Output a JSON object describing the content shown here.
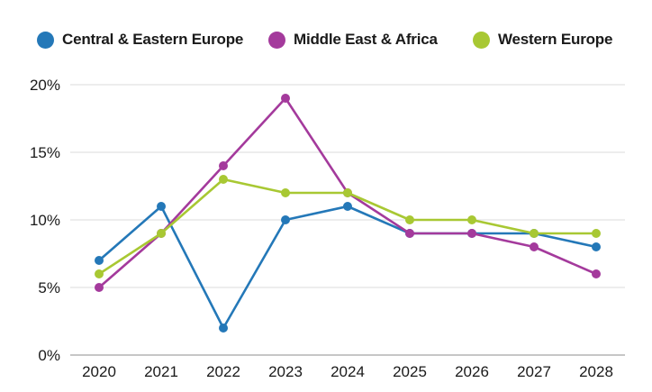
{
  "legend": {
    "items": [
      {
        "label": "Central & Eastern Europe",
        "color": "#2478b8"
      },
      {
        "label": "Middle East & Africa",
        "color": "#a43a9c"
      },
      {
        "label": "Western Europe",
        "color": "#a8c833"
      }
    ]
  },
  "chart_data": {
    "type": "line",
    "title": "",
    "categories": [
      "2020",
      "2021",
      "2022",
      "2023",
      "2024",
      "2025",
      "2026",
      "2027",
      "2028"
    ],
    "series": [
      {
        "name": "Central & Eastern Europe",
        "color": "#2478b8",
        "values": [
          7,
          11,
          2,
          10,
          11,
          9,
          9,
          9,
          8
        ]
      },
      {
        "name": "Middle East & Africa",
        "color": "#a43a9c",
        "values": [
          5,
          9,
          14,
          19,
          12,
          9,
          9,
          8,
          6
        ]
      },
      {
        "name": "Western Europe",
        "color": "#a8c833",
        "values": [
          6,
          9,
          13,
          12,
          12,
          10,
          10,
          9,
          9
        ]
      }
    ],
    "y_ticks": [
      {
        "value": 0,
        "label": "0%"
      },
      {
        "value": 5,
        "label": "5%"
      },
      {
        "value": 10,
        "label": "10%"
      },
      {
        "value": 15,
        "label": "15%"
      },
      {
        "value": 20,
        "label": "20%"
      }
    ],
    "ylim": [
      0,
      20
    ],
    "xlabel": "",
    "ylabel": "",
    "grid": true,
    "legend_position": "top",
    "colors": {
      "gridline": "#e7e7e7",
      "axis_line": "#b3b3b3",
      "text": "#1a1a1a",
      "background": "#ffffff"
    }
  }
}
